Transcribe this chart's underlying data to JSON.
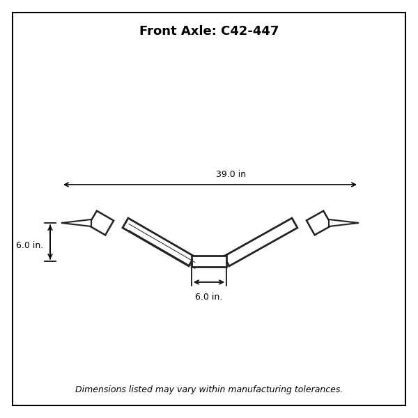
{
  "title": "Front Axle: C42-447",
  "footer": "Dimensions listed may vary within manufacturing tolerances.",
  "dim_width_label": "39.0 in",
  "dim_drop_label": "6.0 in.",
  "dim_center_label": "6.0 in.",
  "bg_color": "#ffffff",
  "border_color": "#000000",
  "axle_color": "#222222",
  "title_fontsize": 13,
  "footer_fontsize": 9,
  "dim_fontsize": 9,
  "figsize": [
    6.0,
    6.0
  ],
  "dpi": 100
}
